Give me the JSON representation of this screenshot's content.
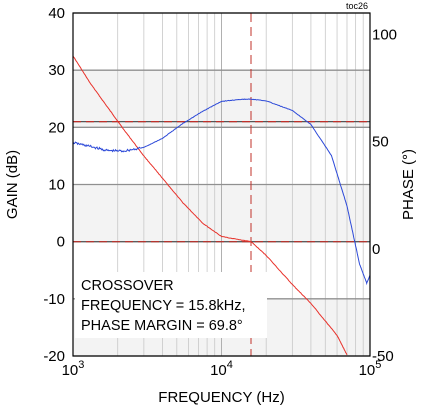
{
  "chart_data": {
    "type": "line",
    "tag": "toc26",
    "xlabel": "FREQUENCY (Hz)",
    "ylabel_left": "GAIN (dB)",
    "ylabel_right": "PHASE (°)",
    "x_scale": "log",
    "xlim": [
      1000,
      100000
    ],
    "ylim_left": [
      -20,
      40
    ],
    "ylim_right": [
      -50,
      110
    ],
    "x_ticks": [
      {
        "value": 1000,
        "base": "10",
        "exp": "3"
      },
      {
        "value": 10000,
        "base": "10",
        "exp": "4"
      },
      {
        "value": 100000,
        "base": "10",
        "exp": "5"
      }
    ],
    "y_ticks_left": [
      "40",
      "30",
      "20",
      "10",
      "0",
      "-10",
      "-20"
    ],
    "y_ticks_right": [
      "100",
      "50",
      "0",
      "-50"
    ],
    "crossover_frequency": 15800,
    "annotation": [
      "CROSSOVER",
      "FREQUENCY = 15.8kHz,",
      "PHASE MARGIN = 69.8°"
    ],
    "series": [
      {
        "role": "gain",
        "axis": "left",
        "color": "#e8312a",
        "x": [
          1000,
          1300,
          1700,
          2200,
          3000,
          4000,
          5500,
          7500,
          10000,
          15800,
          20000,
          30000,
          40000,
          60000,
          70000
        ],
        "y": [
          32.5,
          27.8,
          23.6,
          19.6,
          15.0,
          11.1,
          6.8,
          3.2,
          0.9,
          0.0,
          -2.4,
          -7.5,
          -10.8,
          -16.4,
          -19.8
        ]
      },
      {
        "role": "phase",
        "axis": "right",
        "color": "#2c49d8",
        "x": [
          1000,
          1300,
          1700,
          2200,
          3000,
          4000,
          5500,
          7500,
          10000,
          14000,
          15800,
          20000,
          30000,
          40000,
          55000,
          70000,
          85000,
          95000,
          100000
        ],
        "y": [
          49.5,
          47.8,
          45.8,
          45.6,
          47.3,
          51.5,
          58.5,
          64.2,
          68.8,
          69.8,
          69.8,
          69.0,
          64.5,
          58.0,
          43.5,
          20.0,
          -7.0,
          -16.0,
          -12.5
        ]
      }
    ],
    "reference_lines": [
      {
        "axis": "left",
        "value": 21,
        "style": "dashed",
        "color": "#c0302a"
      },
      {
        "axis": "left",
        "value": 0,
        "style": "dashed",
        "color": "#c0302a"
      }
    ]
  }
}
